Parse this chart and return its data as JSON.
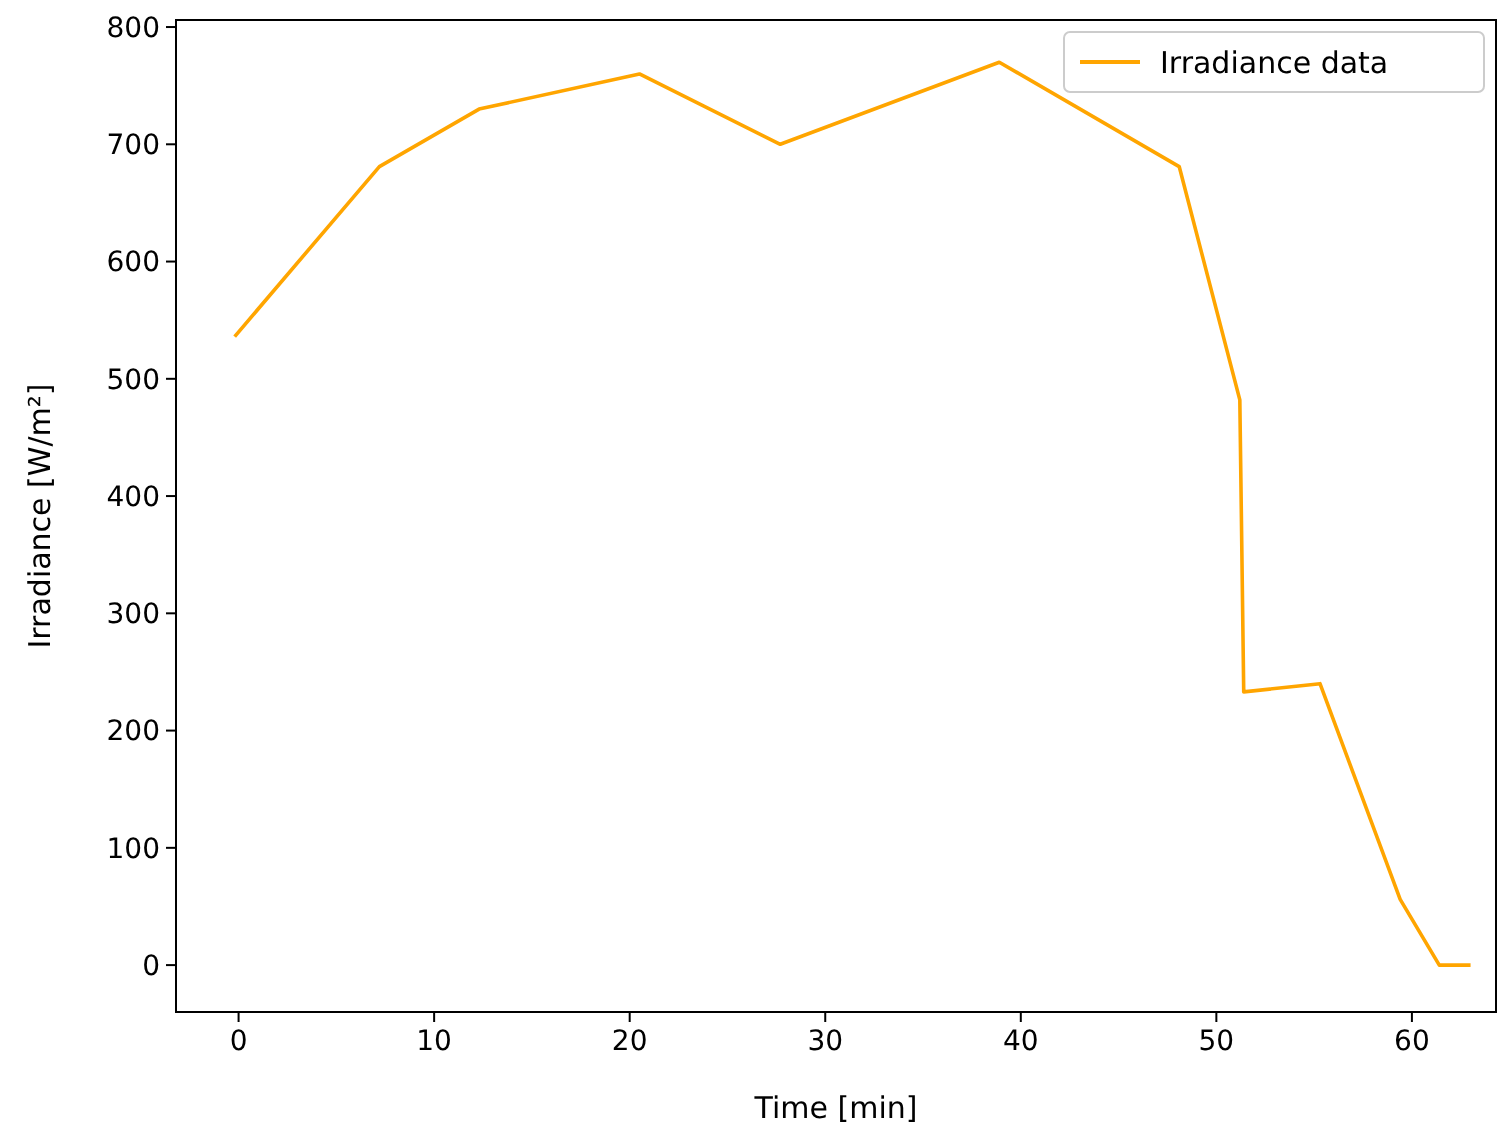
{
  "chart_data": {
    "type": "line",
    "xlabel": "Time [min]",
    "ylabel": "Irradiance [W/m²]",
    "x": [
      -0.2,
      7.2,
      12.3,
      20.5,
      27.7,
      38.9,
      48.1,
      51.2,
      51.4,
      55.3,
      59.4,
      61.4,
      63
    ],
    "series": [
      {
        "name": "Irradiance data",
        "color": "#ffa500",
        "values": [
          536,
          681,
          730,
          760,
          700,
          770,
          681,
          482,
          233,
          240,
          56,
          0,
          0
        ]
      }
    ],
    "xlim": [
      -3.2,
      64.3
    ],
    "ylim": [
      -40,
      806
    ],
    "xticks": [
      0,
      10,
      20,
      30,
      40,
      50,
      60
    ],
    "yticks": [
      0,
      100,
      200,
      300,
      400,
      500,
      600,
      700,
      800
    ],
    "legend": "top right",
    "grid": false,
    "marker": "none",
    "line_style": "solid"
  }
}
